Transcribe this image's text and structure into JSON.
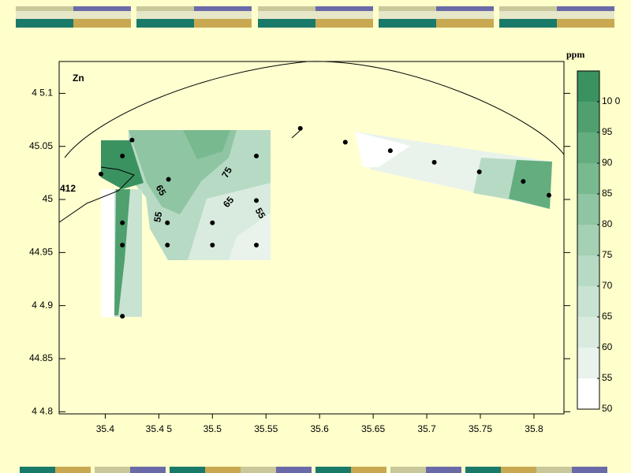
{
  "chart_data": {
    "type": "contour",
    "title": "Zn",
    "colorbar_label": "ppm",
    "annotation": "412",
    "xlim": [
      35.357,
      35.828
    ],
    "ylim": [
      44.798,
      45.13
    ],
    "xticks": [
      35.4,
      {
        "value": 35.45,
        "label": "35.4 5"
      },
      35.5,
      35.55,
      35.6,
      35.65,
      35.7,
      35.75,
      35.8
    ],
    "yticks": [
      {
        "value": 45.1,
        "label": "4 5.1"
      },
      45.05,
      45,
      44.95,
      {
        "value": 44.9,
        "label": "4 4.9"
      },
      44.85,
      {
        "value": 44.8,
        "label": "4 4.8"
      }
    ],
    "points": {
      "x": [
        35.396,
        35.425,
        35.416,
        35.459,
        35.458,
        35.416,
        35.416,
        35.458,
        35.5,
        35.5,
        35.541,
        35.541,
        35.541,
        35.582,
        35.624,
        35.666,
        35.707,
        35.749,
        35.79,
        35.814,
        35.416
      ],
      "y": [
        45.024,
        45.056,
        45.041,
        45.019,
        44.978,
        44.978,
        44.957,
        44.957,
        44.978,
        44.957,
        44.957,
        44.999,
        45.041,
        45.067,
        45.054,
        45.046,
        45.035,
        45.026,
        45.017,
        45.004,
        44.89
      ],
      "color": "#000000"
    },
    "contour_labels": [
      65,
      75,
      65,
      55,
      55
    ],
    "colorbar": {
      "lim": [
        50,
        105
      ],
      "ticks": [
        {
          "value": 100,
          "label": "10 0"
        },
        95,
        90,
        85,
        80,
        75,
        70,
        65,
        60,
        55,
        50
      ],
      "levels": [
        50,
        55,
        60,
        65,
        70,
        75,
        80,
        85,
        90,
        95,
        100
      ],
      "colors": [
        "#ffffff",
        "#e9f3ec",
        "#d9ebdf",
        "#c9e3d2",
        "#b7dac4",
        "#a4d0b4",
        "#8fc5a2",
        "#79b990",
        "#64ad7f",
        "#4fa06e",
        "#3a9260"
      ]
    }
  }
}
